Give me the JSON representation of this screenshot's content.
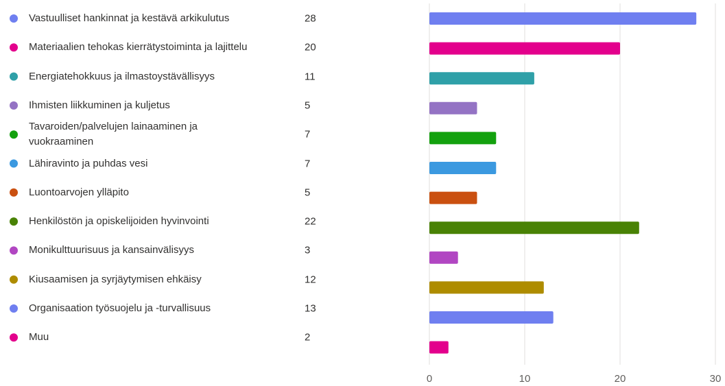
{
  "chart_data": {
    "type": "bar",
    "orientation": "horizontal",
    "categories": [
      "Vastuulliset hankinnat ja kestävä arkikulutus",
      "Materiaalien tehokas kierrätystoiminta ja lajittelu",
      "Energiatehokkuus ja ilmastoystävällisyys",
      "Ihmisten liikkuminen ja kuljetus",
      "Tavaroiden/palvelujen lainaaminen ja vuokraaminen",
      "Lähiravinto ja puhdas vesi",
      "Luontoarvojen ylläpito",
      "Henkilöstön ja opiskelijoiden hyvinvointi",
      "Monikulttuurisuus ja kansainvälisyys",
      "Kiusaamisen ja syrjäytymisen ehkäisy",
      "Organisaation työsuojelu ja -turvallisuus",
      "Muu"
    ],
    "values": [
      28,
      20,
      11,
      5,
      7,
      7,
      5,
      22,
      3,
      12,
      13,
      2
    ],
    "colors": [
      "#6f7ff0",
      "#e3008c",
      "#2fa0a8",
      "#9473c4",
      "#13a10e",
      "#3b99e0",
      "#ca5010",
      "#498205",
      "#b146c2",
      "#ae8c00",
      "#6f7ff0",
      "#e3008c"
    ],
    "xlim": [
      0,
      30
    ],
    "xticks": [
      0,
      10,
      20,
      30
    ],
    "grid": true
  }
}
